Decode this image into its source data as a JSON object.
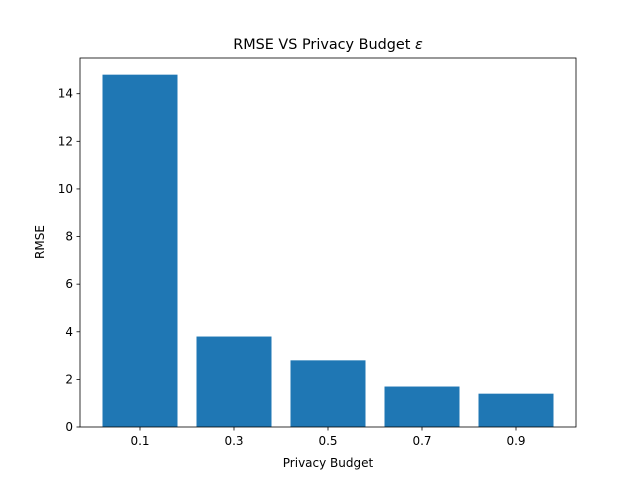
{
  "chart_data": {
    "type": "bar",
    "title": "RMSE VS Privacy Budget",
    "title_symbol": "ε",
    "xlabel": "Privacy Budget",
    "ylabel": "RMSE",
    "categories": [
      "0.1",
      "0.3",
      "0.5",
      "0.7",
      "0.9"
    ],
    "values": [
      14.8,
      3.8,
      2.8,
      1.7,
      1.4
    ],
    "ylim": [
      0,
      15.5
    ],
    "yticks": [
      "0",
      "2",
      "4",
      "6",
      "8",
      "10",
      "12",
      "14"
    ],
    "grid": false,
    "legend": "none",
    "bar_color": "#1f77b4"
  }
}
